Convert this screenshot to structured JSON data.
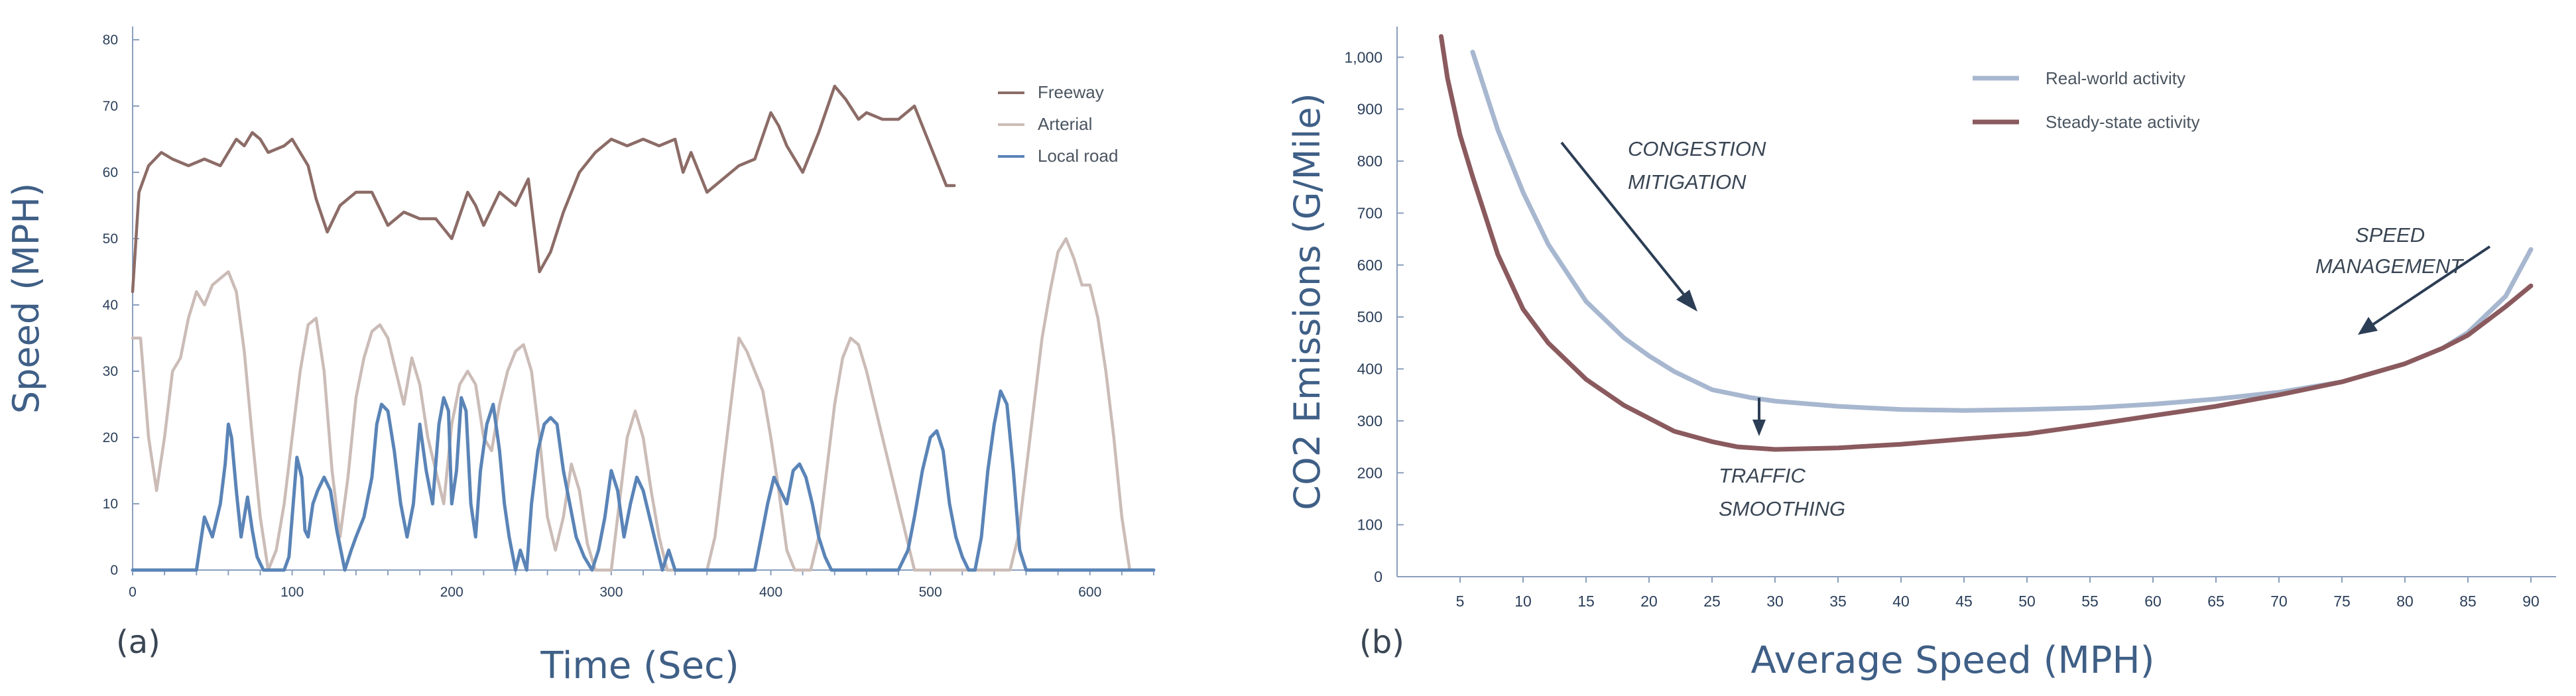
{
  "chart_data": [
    {
      "panel": "(a)",
      "type": "line",
      "xlabel": "Time (Sec)",
      "ylabel": "Speed (MPH)",
      "xlim": [
        0,
        640
      ],
      "ylim": [
        0,
        80
      ],
      "xticks": [
        "0",
        "100",
        "200",
        "300",
        "400",
        "500",
        "600"
      ],
      "yticks": [
        "0",
        "10",
        "20",
        "30",
        "40",
        "50",
        "60",
        "70",
        "80"
      ],
      "legend_position": "top-right",
      "series": [
        {
          "name": "Freeway",
          "color": "#8c6c67",
          "x": [
            0,
            4,
            10,
            18,
            25,
            35,
            45,
            55,
            65,
            70,
            75,
            80,
            85,
            95,
            100,
            110,
            115,
            122,
            130,
            140,
            150,
            160,
            170,
            180,
            190,
            200,
            210,
            215,
            220,
            230,
            240,
            248,
            255,
            262,
            270,
            280,
            290,
            300,
            310,
            320,
            330,
            340,
            345,
            350,
            360,
            370,
            380,
            390,
            400,
            405,
            410,
            420,
            430,
            440,
            447,
            455,
            460,
            470,
            480,
            490,
            500,
            510,
            515
          ],
          "y": [
            42,
            57,
            61,
            63,
            62,
            61,
            62,
            61,
            65,
            64,
            66,
            65,
            63,
            64,
            65,
            61,
            56,
            51,
            55,
            57,
            57,
            52,
            54,
            53,
            53,
            50,
            57,
            55,
            52,
            57,
            55,
            59,
            45,
            48,
            54,
            60,
            63,
            65,
            64,
            65,
            64,
            65,
            60,
            63,
            57,
            59,
            61,
            62,
            69,
            67,
            64,
            60,
            66,
            73,
            71,
            68,
            69,
            68,
            68,
            70,
            64,
            58,
            58
          ]
        },
        {
          "name": "Arterial",
          "color": "#cbbcb7",
          "x": [
            0,
            5,
            10,
            15,
            20,
            25,
            30,
            35,
            40,
            45,
            50,
            55,
            60,
            65,
            70,
            75,
            80,
            85,
            90,
            95,
            100,
            105,
            110,
            115,
            120,
            125,
            130,
            135,
            140,
            145,
            150,
            155,
            160,
            165,
            170,
            175,
            180,
            185,
            190,
            195,
            200,
            205,
            210,
            215,
            220,
            225,
            230,
            235,
            240,
            245,
            250,
            255,
            260,
            265,
            270,
            275,
            280,
            285,
            290,
            295,
            300,
            305,
            310,
            315,
            320,
            325,
            330,
            335,
            340,
            345,
            350,
            360,
            365,
            370,
            375,
            380,
            385,
            390,
            395,
            400,
            405,
            410,
            415,
            420,
            425,
            430,
            435,
            440,
            445,
            450,
            455,
            460,
            465,
            470,
            475,
            480,
            485,
            490,
            495,
            500,
            505,
            510,
            515,
            520,
            525,
            530,
            540,
            545,
            550,
            555,
            560,
            565,
            570,
            575,
            580,
            585,
            590,
            595,
            600,
            605,
            610,
            615,
            620,
            625
          ],
          "y": [
            35,
            35,
            20,
            12,
            20,
            30,
            32,
            38,
            42,
            40,
            43,
            44,
            45,
            42,
            33,
            20,
            8,
            0,
            3,
            10,
            20,
            30,
            37,
            38,
            30,
            15,
            5,
            14,
            26,
            32,
            36,
            37,
            35,
            30,
            25,
            32,
            28,
            20,
            15,
            10,
            22,
            28,
            30,
            28,
            20,
            18,
            25,
            30,
            33,
            34,
            30,
            20,
            8,
            3,
            8,
            16,
            12,
            4,
            0,
            0,
            0,
            10,
            20,
            24,
            20,
            12,
            5,
            0,
            0,
            0,
            0,
            0,
            5,
            15,
            25,
            35,
            33,
            30,
            27,
            20,
            12,
            3,
            0,
            0,
            0,
            5,
            15,
            25,
            32,
            35,
            34,
            30,
            25,
            20,
            15,
            10,
            5,
            0,
            0,
            0,
            0,
            0,
            0,
            0,
            0,
            0,
            0,
            0,
            0,
            5,
            15,
            25,
            35,
            42,
            48,
            50,
            47,
            43,
            43,
            38,
            30,
            20,
            8,
            0
          ]
        },
        {
          "name": "Local road",
          "color": "#5a84b7",
          "x": [
            0,
            40,
            45,
            50,
            55,
            58,
            60,
            62,
            65,
            68,
            70,
            72,
            75,
            78,
            82,
            85,
            90,
            95,
            98,
            100,
            103,
            106,
            108,
            110,
            113,
            116,
            120,
            124,
            128,
            133,
            137,
            140,
            145,
            150,
            153,
            156,
            160,
            164,
            168,
            172,
            176,
            180,
            184,
            188,
            192,
            195,
            198,
            200,
            203,
            206,
            209,
            212,
            215,
            218,
            222,
            226,
            230,
            233,
            236,
            240,
            243,
            247,
            250,
            254,
            258,
            262,
            266,
            270,
            274,
            278,
            283,
            288,
            292,
            296,
            300,
            304,
            308,
            312,
            316,
            320,
            324,
            328,
            332,
            336,
            340,
            344,
            348,
            352,
            356,
            360,
            380,
            390,
            394,
            398,
            402,
            406,
            410,
            414,
            418,
            422,
            426,
            430,
            434,
            438,
            442,
            446,
            450,
            460,
            470,
            480,
            486,
            490,
            495,
            500,
            504,
            508,
            512,
            516,
            520,
            524,
            528,
            532,
            536,
            540,
            544,
            548,
            552,
            556,
            560,
            570,
            580,
            600,
            640
          ],
          "y": [
            0,
            0,
            8,
            5,
            10,
            16,
            22,
            20,
            12,
            5,
            8,
            11,
            6,
            2,
            0,
            0,
            0,
            0,
            2,
            8,
            17,
            14,
            6,
            5,
            10,
            12,
            14,
            12,
            6,
            0,
            3,
            5,
            8,
            14,
            22,
            25,
            24,
            18,
            10,
            5,
            10,
            22,
            15,
            10,
            22,
            26,
            24,
            10,
            15,
            26,
            24,
            10,
            5,
            15,
            22,
            25,
            18,
            10,
            5,
            0,
            3,
            0,
            10,
            18,
            22,
            23,
            22,
            15,
            10,
            5,
            2,
            0,
            3,
            8,
            15,
            12,
            5,
            10,
            14,
            12,
            8,
            4,
            0,
            3,
            0,
            0,
            0,
            0,
            0,
            0,
            0,
            0,
            5,
            10,
            14,
            12,
            10,
            15,
            16,
            14,
            10,
            5,
            2,
            0,
            0,
            0,
            0,
            0,
            0,
            0,
            3,
            8,
            15,
            20,
            21,
            18,
            10,
            5,
            2,
            0,
            0,
            5,
            15,
            22,
            27,
            25,
            15,
            3,
            0,
            0,
            0,
            0,
            0
          ]
        }
      ]
    },
    {
      "panel": "(b)",
      "type": "line",
      "xlabel": "Average Speed (MPH)",
      "ylabel": "CO2 Emissions (G/Mile)",
      "xlim": [
        0,
        92
      ],
      "ylim": [
        0,
        1040
      ],
      "xticks": [
        "5",
        "10",
        "15",
        "20",
        "25",
        "30",
        "35",
        "40",
        "45",
        "50",
        "55",
        "60",
        "65",
        "70",
        "75",
        "80",
        "85",
        "90"
      ],
      "yticks": [
        "0",
        "100",
        "200",
        "300",
        "400",
        "500",
        "600",
        "700",
        "800",
        "900",
        "1,000"
      ],
      "legend_position": "top-right",
      "series": [
        {
          "name": "Real-world activity",
          "color": "#a7b7cf",
          "x": [
            6,
            8,
            10,
            12,
            15,
            18,
            20,
            22,
            25,
            28,
            30,
            35,
            40,
            45,
            50,
            55,
            60,
            65,
            70,
            75,
            80,
            83,
            85,
            88,
            90
          ],
          "y": [
            1010,
            860,
            740,
            640,
            530,
            460,
            425,
            395,
            360,
            345,
            338,
            328,
            322,
            320,
            322,
            325,
            332,
            342,
            355,
            375,
            410,
            440,
            470,
            540,
            630
          ]
        },
        {
          "name": "Steady-state activity",
          "color": "#8a5a5e",
          "x": [
            3.5,
            4,
            5,
            6,
            8,
            10,
            12,
            15,
            18,
            20,
            22,
            25,
            27,
            30,
            35,
            40,
            45,
            50,
            55,
            60,
            65,
            70,
            75,
            80,
            83,
            85,
            88,
            90
          ],
          "y": [
            1040,
            960,
            850,
            770,
            620,
            515,
            450,
            380,
            330,
            305,
            280,
            260,
            250,
            245,
            248,
            255,
            265,
            275,
            292,
            310,
            328,
            350,
            375,
            410,
            440,
            465,
            520,
            560
          ]
        }
      ],
      "annotations": [
        {
          "lines": [
            "CONGESTION",
            "MITIGATION"
          ]
        },
        {
          "lines": [
            "TRAFFIC",
            "SMOOTHING"
          ]
        },
        {
          "lines": [
            "SPEED",
            "MANAGEMENT"
          ]
        }
      ]
    }
  ]
}
